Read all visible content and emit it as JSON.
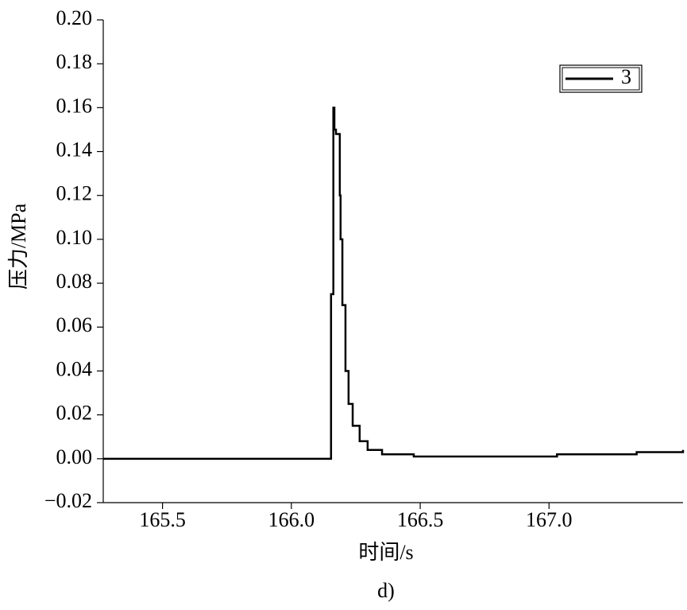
{
  "chart_data": {
    "type": "line",
    "caption": "d)",
    "x_label": "时间/s",
    "y_label": "压力/MPa",
    "x": [
      165.27,
      165.5,
      165.8,
      166.152,
      166.154,
      166.16,
      166.163,
      166.167,
      166.173,
      166.188,
      166.191,
      166.198,
      166.21,
      166.222,
      166.238,
      166.265,
      166.296,
      166.352,
      166.475,
      166.722,
      167.031,
      167.34,
      167.52
    ],
    "series": [
      {
        "name": "3",
        "color": "#000000",
        "values": [
          0.0,
          0.0,
          0.0,
          0.0,
          0.075,
          0.075,
          0.16,
          0.15,
          0.148,
          0.12,
          0.1,
          0.07,
          0.04,
          0.025,
          0.015,
          0.008,
          0.004,
          0.002,
          0.001,
          0.001,
          0.002,
          0.003,
          0.004
        ]
      }
    ],
    "xlim": [
      165.27,
      167.52
    ],
    "ylim": [
      -0.02,
      0.2
    ],
    "xticks": [
      165.5,
      {
        "value": 166.0,
        "label": "166.0"
      },
      166.5,
      {
        "value": 167.0,
        "label": "167.0"
      }
    ],
    "yticks": [
      {
        "value": -0.02,
        "label": "−0.02"
      },
      {
        "value": 0,
        "label": "0.00"
      },
      0.02,
      0.04,
      0.06,
      0.08,
      {
        "value": 0.1,
        "label": "0.10"
      },
      0.12,
      0.14,
      0.16,
      0.18,
      {
        "value": 0.2,
        "label": "0.20"
      }
    ],
    "grid": false,
    "legend": "upper right",
    "step": true
  }
}
